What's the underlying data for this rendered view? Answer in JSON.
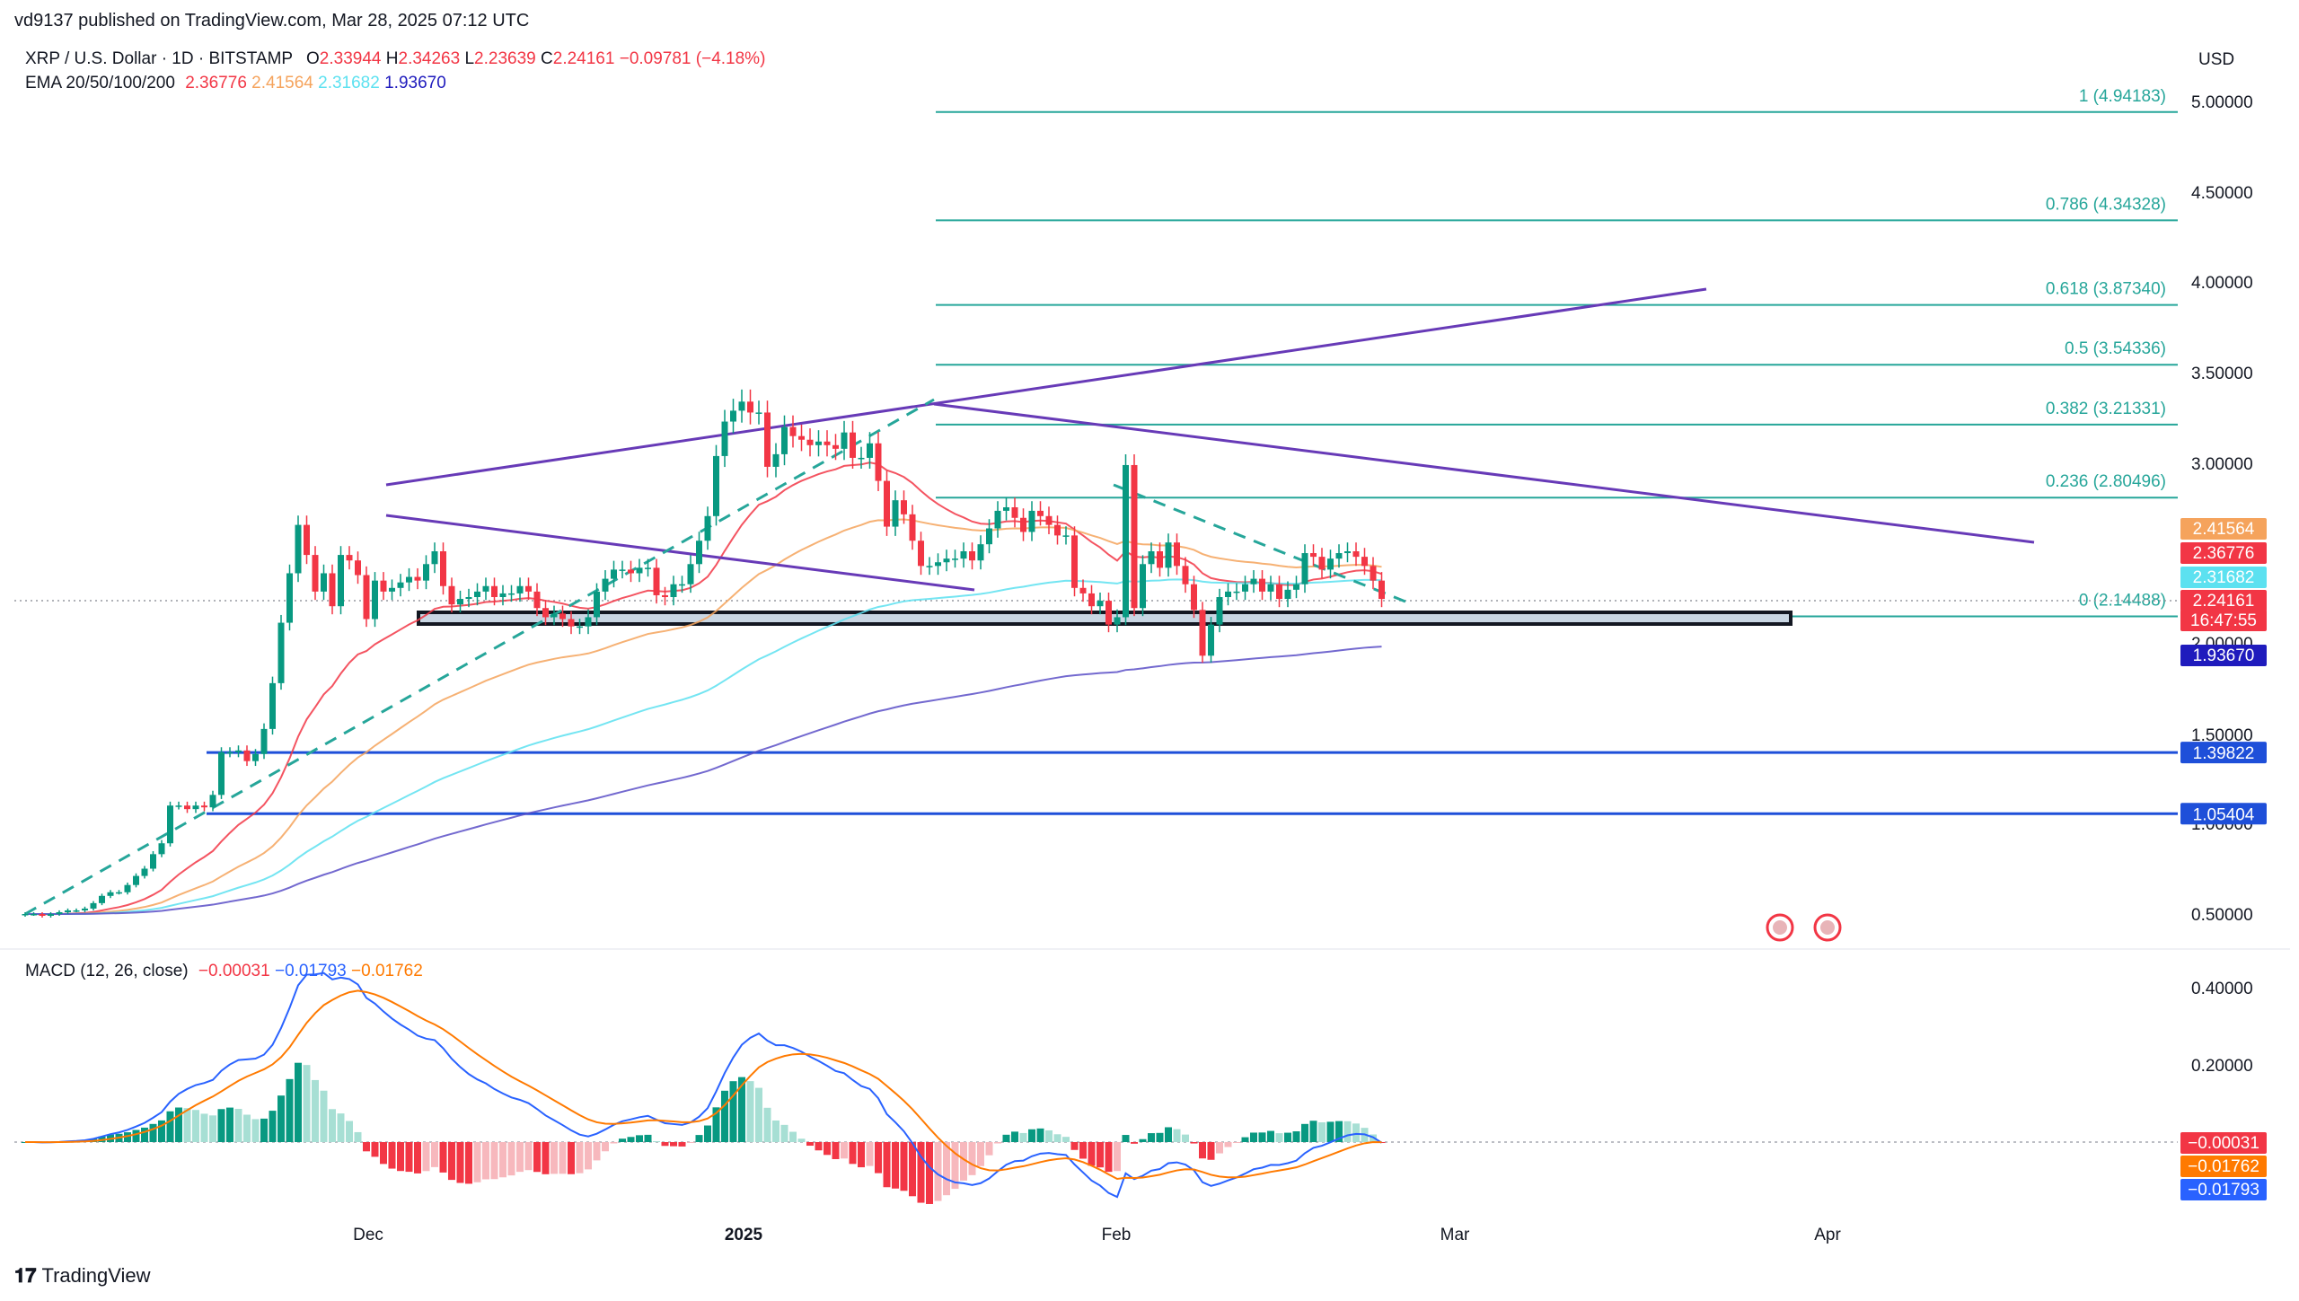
{
  "header": {
    "publisher": "vd9137 published on TradingView.com, Mar 28, 2025 07:12 UTC",
    "symbol": "XRP / U.S. Dollar · 1D · BITSTAMP",
    "ohlc": {
      "o_label": "O",
      "o": "2.33944",
      "h_label": "H",
      "h": "2.34263",
      "l_label": "L",
      "l": "2.23639",
      "c_label": "C",
      "c": "2.24161",
      "change": "−0.09781 (−4.18%)"
    },
    "ema_label": "EMA 20/50/100/200",
    "ema_values": [
      "2.36776",
      "2.41564",
      "2.31682",
      "1.93670"
    ],
    "currency": "USD"
  },
  "macd_legend": {
    "label": "MACD (12, 26, close)",
    "values": [
      "−0.00031",
      "−0.01793",
      "−0.01762"
    ]
  },
  "brand": "TradingView",
  "colors": {
    "up": "#089981",
    "down": "#f23645",
    "ema20": "#f23645",
    "ema50": "#f5a35c",
    "ema100": "#5ce1f0",
    "ema200": "#5b4fc7",
    "fib": "#26a69a",
    "trend": "#673ab7",
    "support": "#1e4fd9",
    "macd": "#2962ff",
    "signal": "#ff7a00"
  },
  "chart_data": {
    "type": "candlestick",
    "x_labels": [
      "Dec",
      "2025",
      "Feb",
      "Mar",
      "Apr"
    ],
    "y_ticks": [
      "5.00000",
      "4.50000",
      "4.00000",
      "3.50000",
      "3.00000",
      "2.00000",
      "1.50000",
      "1.00000",
      "0.50000"
    ],
    "ylim": [
      0.4,
      5.1
    ],
    "closes": [
      0.5,
      0.5,
      0.49,
      0.5,
      0.51,
      0.52,
      0.52,
      0.53,
      0.56,
      0.6,
      0.62,
      0.62,
      0.66,
      0.71,
      0.75,
      0.83,
      0.89,
      1.1,
      1.1,
      1.08,
      1.1,
      1.09,
      1.16,
      1.4,
      1.4,
      1.41,
      1.35,
      1.39,
      1.53,
      1.78,
      2.11,
      2.38,
      2.65,
      2.48,
      2.28,
      2.38,
      2.2,
      2.48,
      2.45,
      2.37,
      2.13,
      2.34,
      2.28,
      2.3,
      2.33,
      2.36,
      2.34,
      2.43,
      2.5,
      2.31,
      2.21,
      2.24,
      2.25,
      2.28,
      2.31,
      2.25,
      2.27,
      2.27,
      2.31,
      2.28,
      2.19,
      2.14,
      2.16,
      2.13,
      2.09,
      2.09,
      2.14,
      2.28,
      2.35,
      2.4,
      2.4,
      2.38,
      2.41,
      2.41,
      2.26,
      2.25,
      2.32,
      2.32,
      2.43,
      2.56,
      2.7,
      3.04,
      3.23,
      3.29,
      3.34,
      3.28,
      3.28,
      2.98,
      3.05,
      3.2,
      3.15,
      3.13,
      3.1,
      3.12,
      3.1,
      3.08,
      3.17,
      3.03,
      3.03,
      3.11,
      2.9,
      2.64,
      2.79,
      2.71,
      2.56,
      2.42,
      2.42,
      2.44,
      2.46,
      2.46,
      2.5,
      2.45,
      2.54,
      2.63,
      2.73,
      2.75,
      2.69,
      2.61,
      2.73,
      2.7,
      2.65,
      2.59,
      2.59,
      2.3,
      2.27,
      2.2,
      2.23,
      2.1,
      2.14,
      2.99,
      2.19,
      2.43,
      2.5,
      2.41,
      2.55,
      2.42,
      2.32,
      2.18,
      1.93,
      2.1,
      2.25,
      2.28,
      2.28,
      2.32,
      2.35,
      2.28,
      2.32,
      2.24,
      2.29,
      2.32,
      2.49,
      2.47,
      2.4,
      2.46,
      2.49,
      2.5,
      2.47,
      2.42,
      2.34,
      2.24
    ],
    "emas": [
      {
        "name": "EMA 20",
        "value": "2.36776"
      },
      {
        "name": "EMA 50",
        "value": "2.41564"
      },
      {
        "name": "EMA 100",
        "value": "2.31682"
      },
      {
        "name": "EMA 200",
        "value": "1.93670"
      }
    ],
    "fib_levels": [
      {
        "label": "1 (4.94183)",
        "value": 4.94183
      },
      {
        "label": "0.786 (4.34328)",
        "value": 4.34328
      },
      {
        "label": "0.618 (3.87340)",
        "value": 3.8734
      },
      {
        "label": "0.5 (3.54336)",
        "value": 3.54336
      },
      {
        "label": "0.382 (3.21331)",
        "value": 3.21331
      },
      {
        "label": "0.236 (2.80496)",
        "value": 2.80496
      },
      {
        "label": "0 (2.14488)",
        "value": 2.14488
      }
    ],
    "support_lines": [
      {
        "value": 1.39822,
        "label": "1.39822"
      },
      {
        "value": 1.05404,
        "label": "1.05404"
      }
    ],
    "price_tags": [
      {
        "value": "2.41564",
        "color": "#f5a35c"
      },
      {
        "value": "2.36776",
        "color": "#f23645"
      },
      {
        "value": "2.31682",
        "color": "#5ce1f0"
      },
      {
        "value": "2.24161",
        "color": "#f23645"
      },
      {
        "value": "16:47:55",
        "color": "#f23645"
      },
      {
        "value": "1.93670",
        "color": "#1f1bbd"
      }
    ],
    "macd": {
      "y_ticks": [
        "0.40000",
        "0.20000"
      ],
      "ylim": [
        -0.12,
        0.45
      ],
      "tags": [
        {
          "value": "−0.00031",
          "color": "#f23645"
        },
        {
          "value": "−0.01762",
          "color": "#ff7a00"
        },
        {
          "value": "−0.01793",
          "color": "#2962ff"
        }
      ]
    }
  }
}
